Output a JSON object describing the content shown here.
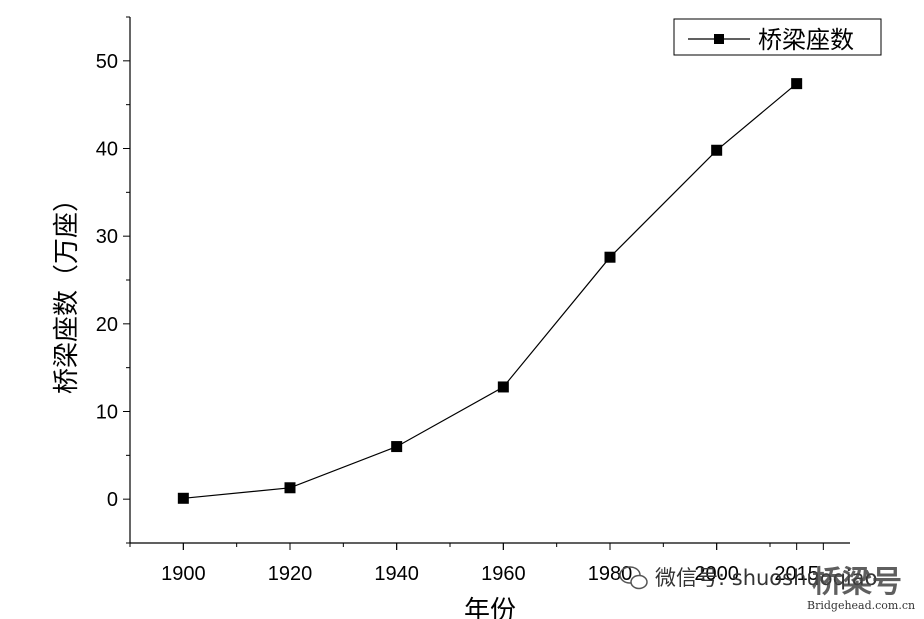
{
  "chart_data": {
    "type": "line",
    "x": [
      1900,
      1920,
      1940,
      1960,
      1980,
      2000,
      2015
    ],
    "series": [
      {
        "name": "桥梁座数",
        "values": [
          0.1,
          1.3,
          6.0,
          12.8,
          27.6,
          39.8,
          47.4
        ]
      }
    ],
    "xlabel": "年份",
    "ylabel": "桥梁座数（万座）",
    "xticks": [
      "1900",
      "1920",
      "1940",
      "1960",
      "1980",
      "2000",
      "2015"
    ],
    "yticks": [
      "0",
      "10",
      "20",
      "30",
      "40",
      "50"
    ],
    "xlim": [
      1890,
      2025
    ],
    "ylim": [
      -5,
      55
    ],
    "legend": "top-right",
    "marker": "square",
    "color": "#000000",
    "grid": false
  },
  "watermark": {
    "wechat_text": "微信号: shuoshuoqiao",
    "logo_text": "桥梁号",
    "url": "Bridgehead.com.cn"
  }
}
